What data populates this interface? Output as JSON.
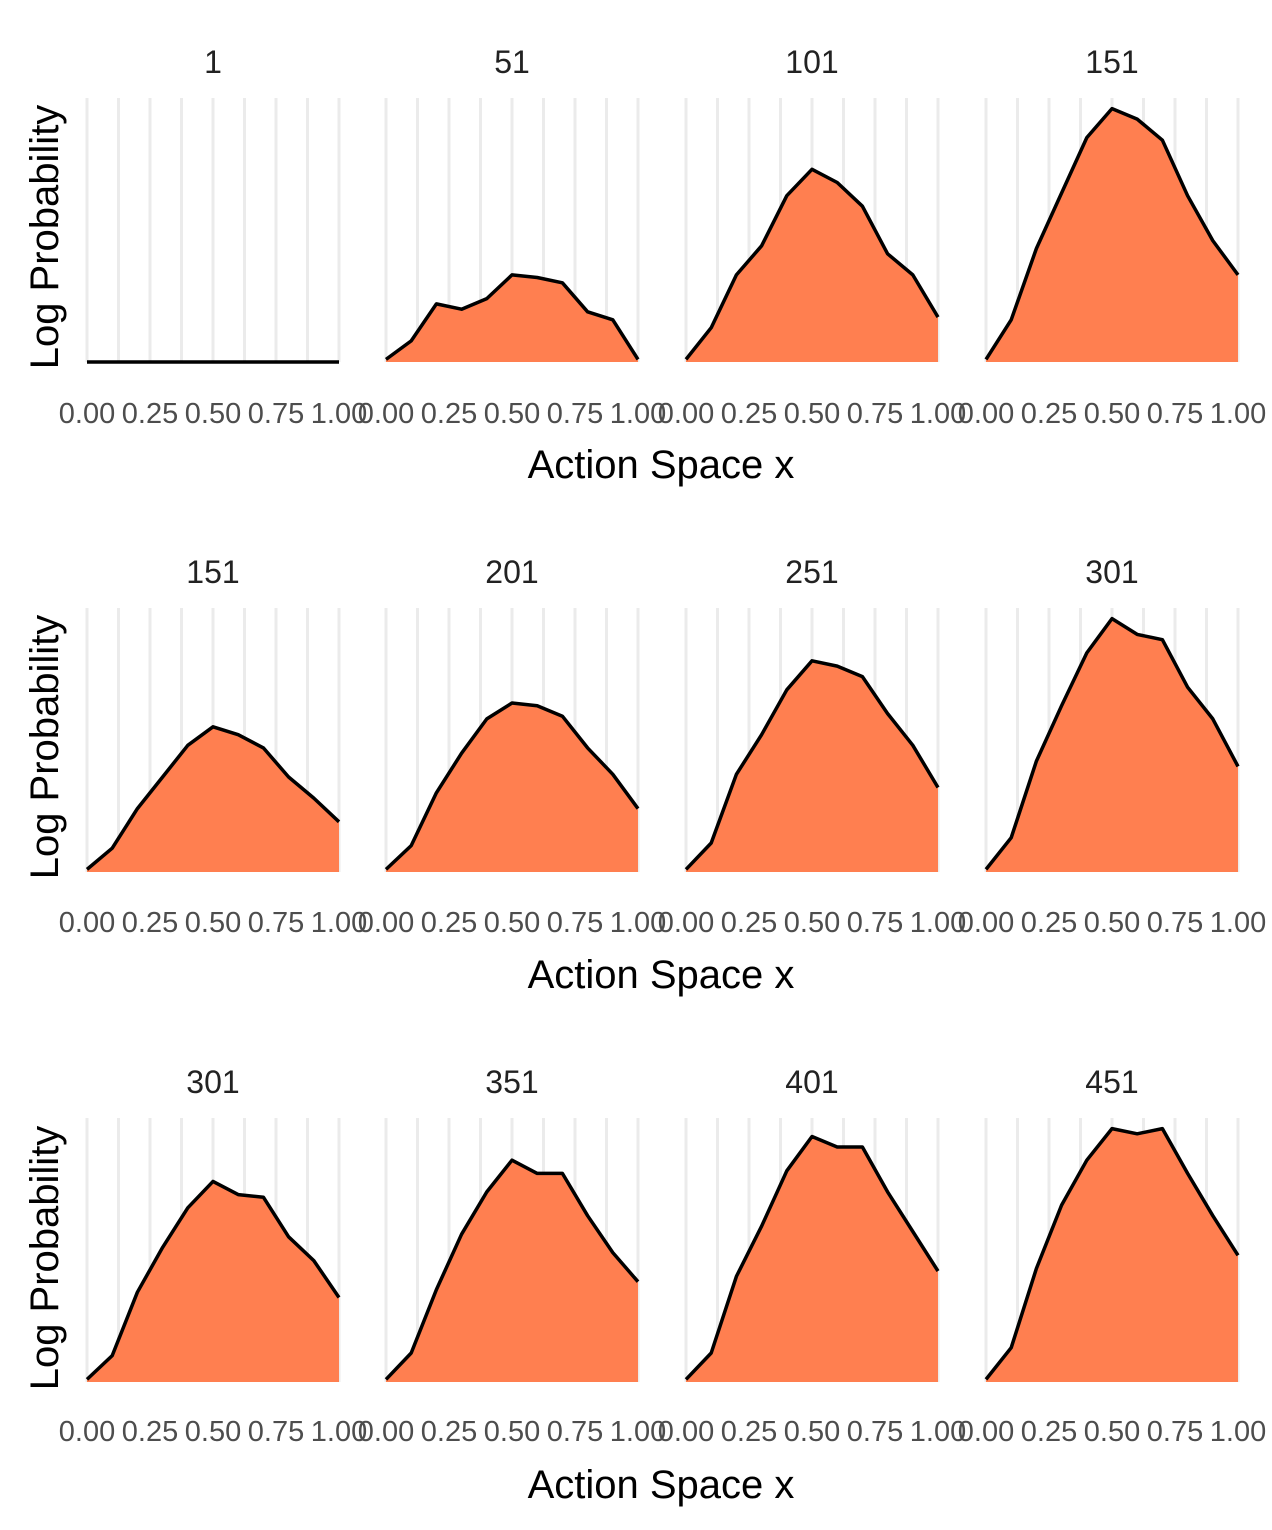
{
  "chart_data": [
    {
      "type": "area",
      "xlabel": "Action Space x",
      "ylabel": "Log Probability",
      "xlim": [
        0,
        1
      ],
      "x_ticks": [
        "0.00",
        "0.25",
        "0.50",
        "0.75",
        "1.00"
      ],
      "grid": "vertical",
      "fill_color": "#FF7F50",
      "line_color": "#000000",
      "x": [
        0,
        0.1,
        0.2,
        0.3,
        0.4,
        0.5,
        0.6,
        0.7,
        0.8,
        0.9,
        1.0
      ],
      "panels": [
        {
          "title": "1",
          "values": [
            0,
            0,
            0,
            0,
            0,
            0,
            0,
            0,
            0,
            0,
            0
          ]
        },
        {
          "title": "51",
          "values": [
            0.01,
            0.08,
            0.22,
            0.2,
            0.24,
            0.33,
            0.32,
            0.3,
            0.19,
            0.16,
            0.01
          ]
        },
        {
          "title": "101",
          "values": [
            0.01,
            0.13,
            0.33,
            0.44,
            0.63,
            0.73,
            0.68,
            0.59,
            0.41,
            0.33,
            0.17
          ]
        },
        {
          "title": "151",
          "values": [
            0.01,
            0.16,
            0.43,
            0.64,
            0.85,
            0.96,
            0.92,
            0.84,
            0.63,
            0.46,
            0.33
          ]
        }
      ]
    },
    {
      "type": "area",
      "xlabel": "Action Space x",
      "ylabel": "Log Probability",
      "xlim": [
        0,
        1
      ],
      "x_ticks": [
        "0.00",
        "0.25",
        "0.50",
        "0.75",
        "1.00"
      ],
      "grid": "vertical",
      "fill_color": "#FF7F50",
      "line_color": "#000000",
      "x": [
        0,
        0.1,
        0.2,
        0.3,
        0.4,
        0.5,
        0.6,
        0.7,
        0.8,
        0.9,
        1.0
      ],
      "panels": [
        {
          "title": "151",
          "values": [
            0.01,
            0.09,
            0.24,
            0.36,
            0.48,
            0.55,
            0.52,
            0.47,
            0.36,
            0.28,
            0.19
          ]
        },
        {
          "title": "201",
          "values": [
            0.01,
            0.1,
            0.3,
            0.45,
            0.58,
            0.64,
            0.63,
            0.59,
            0.47,
            0.37,
            0.24
          ]
        },
        {
          "title": "251",
          "values": [
            0.01,
            0.11,
            0.37,
            0.52,
            0.69,
            0.8,
            0.78,
            0.74,
            0.6,
            0.48,
            0.32
          ]
        },
        {
          "title": "301",
          "values": [
            0.01,
            0.13,
            0.42,
            0.63,
            0.83,
            0.96,
            0.9,
            0.88,
            0.7,
            0.58,
            0.4
          ]
        }
      ]
    },
    {
      "type": "area",
      "xlabel": "Action Space x",
      "ylabel": "Log Probability",
      "xlim": [
        0,
        1
      ],
      "x_ticks": [
        "0.00",
        "0.25",
        "0.50",
        "0.75",
        "1.00"
      ],
      "grid": "vertical",
      "fill_color": "#FF7F50",
      "line_color": "#000000",
      "x": [
        0,
        0.1,
        0.2,
        0.3,
        0.4,
        0.5,
        0.6,
        0.7,
        0.8,
        0.9,
        1.0
      ],
      "panels": [
        {
          "title": "301",
          "values": [
            0.01,
            0.1,
            0.34,
            0.51,
            0.66,
            0.76,
            0.71,
            0.7,
            0.55,
            0.46,
            0.32
          ]
        },
        {
          "title": "351",
          "values": [
            0.01,
            0.11,
            0.35,
            0.56,
            0.72,
            0.84,
            0.79,
            0.79,
            0.63,
            0.49,
            0.38
          ]
        },
        {
          "title": "401",
          "values": [
            0.01,
            0.11,
            0.4,
            0.59,
            0.8,
            0.93,
            0.89,
            0.89,
            0.72,
            0.57,
            0.42
          ]
        },
        {
          "title": "451",
          "values": [
            0.01,
            0.13,
            0.43,
            0.67,
            0.84,
            0.96,
            0.94,
            0.96,
            0.79,
            0.63,
            0.48
          ]
        }
      ]
    }
  ]
}
